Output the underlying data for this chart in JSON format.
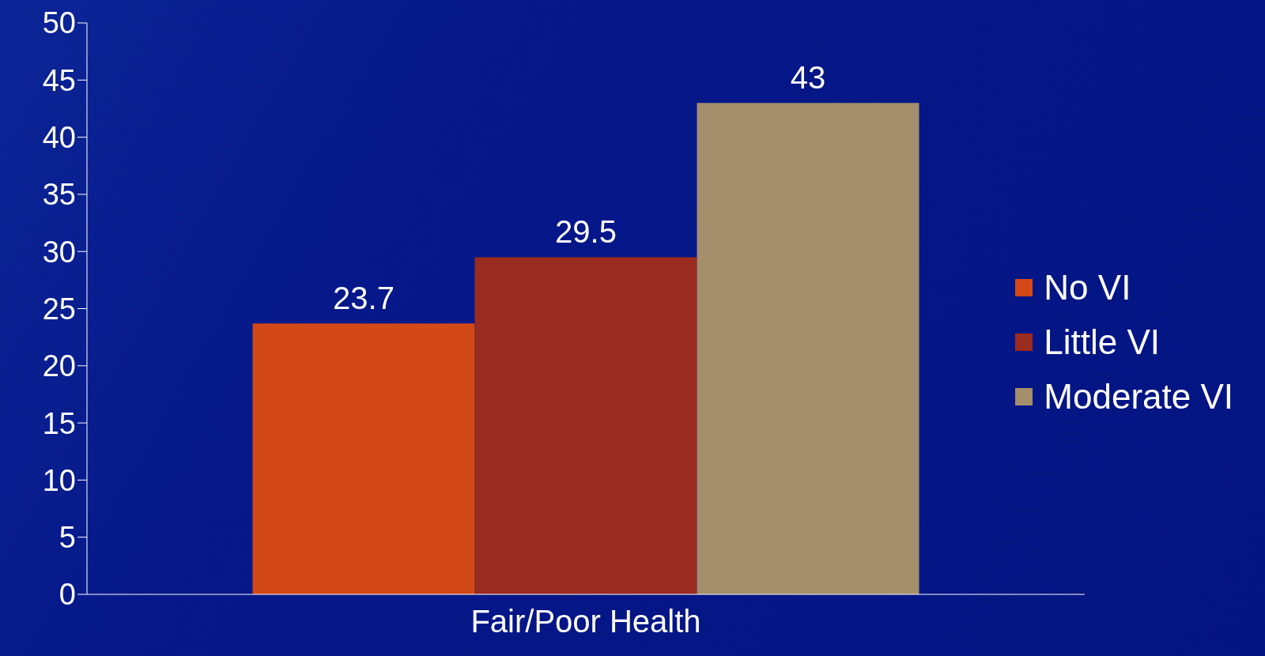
{
  "chart_data": {
    "type": "bar",
    "categories": [
      "Fair/Poor Health"
    ],
    "series": [
      {
        "name": "No VI",
        "color": "#d24917",
        "values": [
          23.7
        ]
      },
      {
        "name": "Little VI",
        "color": "#9a2b20",
        "values": [
          29.5
        ]
      },
      {
        "name": "Moderate VI",
        "color": "#a48e6c",
        "values": [
          43
        ]
      }
    ],
    "ylim": [
      0,
      50
    ],
    "yticks": [
      0,
      5,
      10,
      15,
      20,
      25,
      30,
      35,
      40,
      45,
      50
    ],
    "grid": false,
    "legend": "right",
    "data_labels": true
  }
}
